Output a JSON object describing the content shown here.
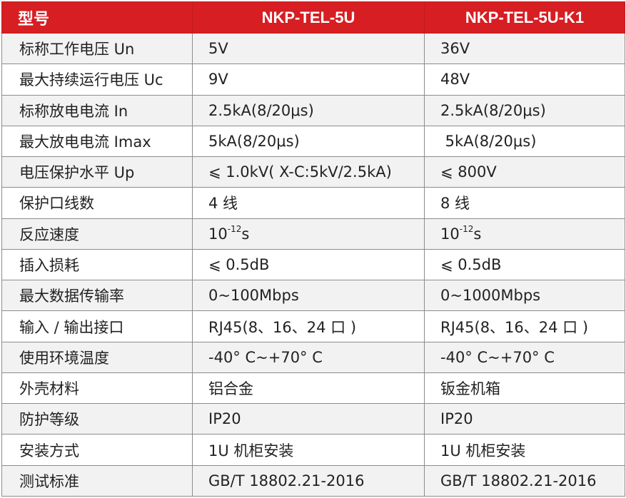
{
  "header": [
    "型号",
    "NKP-TEL-5U",
    "NKP-TEL-5U-K1"
  ],
  "rows": [
    {
      "label": "标称工作电压 Un",
      "a": "5V",
      "b": "36V"
    },
    {
      "label": "最大持续运行电压 Uc",
      "a": "9V",
      "b": "48V"
    },
    {
      "label": "标称放电电流 In",
      "a": "2.5kA(8/20μs)",
      "b": "2.5kA(8/20μs)"
    },
    {
      "label": "最大放电电流 Imax",
      "a": "5kA(8/20μs)",
      "b": " 5kA(8/20μs)"
    },
    {
      "label": "电压保护水平 Up",
      "a": "⩽ 1.0kV( X-C:5kV/2.5kA)",
      "b": "⩽ 800V"
    },
    {
      "label": "保护口线数",
      "a": "4 线",
      "b": "8 线"
    },
    {
      "label": "反应速度",
      "a": {
        "base": "10",
        "exp": "-12",
        "unit": "s"
      },
      "b": {
        "base": "10",
        "exp": "-12",
        "unit": "s"
      }
    },
    {
      "label": "插入损耗",
      "a": "⩽ 0.5dB",
      "b": "⩽ 0.5dB"
    },
    {
      "label": "最大数据传输率",
      "a": "0~100Mbps",
      "b": "0~1000Mbps"
    },
    {
      "label": "输入 / 输出接口",
      "a": "RJ45(8、16、24 口 )",
      "b": "RJ45(8、16、24 口 )"
    },
    {
      "label": "使用环境温度",
      "a": "-40° C~+70° C",
      "b": "-40° C~+70° C"
    },
    {
      "label": "外壳材料",
      "a": "铝合金",
      "b": "钣金机箱"
    },
    {
      "label": "防护等级",
      "a": "IP20",
      "b": "IP20"
    },
    {
      "label": "安装方式",
      "a": "1U 机柜安装",
      "b": "1U 机柜安装"
    },
    {
      "label": "测试标准",
      "a": "GB/T 18802.21-2016",
      "b": "GB/T 18802.21-2016"
    }
  ]
}
